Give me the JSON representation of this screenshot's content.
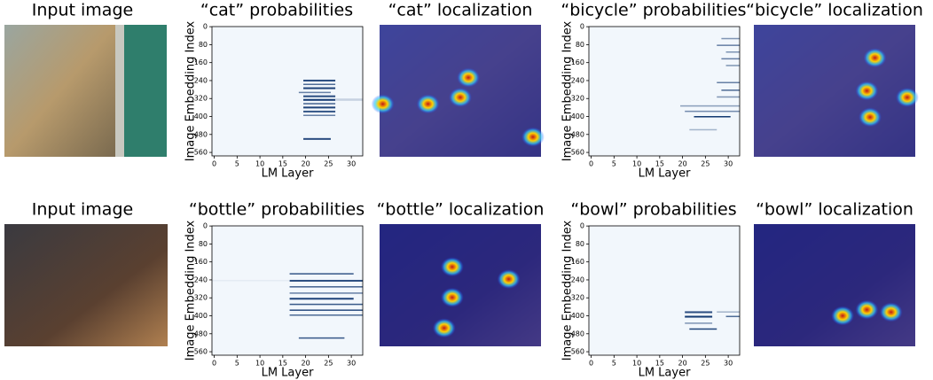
{
  "axes": {
    "xlabel": "LM Layer",
    "ylabel": "Image Embedding Index",
    "xlim": [
      -0.5,
      32.5
    ],
    "ylim": [
      -0.5,
      575.5
    ],
    "xticks": [
      0,
      5,
      10,
      15,
      20,
      25,
      30
    ],
    "yticks": [
      0,
      80,
      160,
      240,
      320,
      400,
      480,
      560
    ]
  },
  "rows": [
    {
      "input_title": "Input image",
      "localization_titles": [
        "“cat” localization",
        "“bicycle” localization"
      ],
      "plots": [
        {
          "title": "“cat” probabilities",
          "bands": [
            {
              "layers": [
                20,
                26
              ],
              "index": [
                236,
                244
              ],
              "level": 0.85
            },
            {
              "layers": [
                20,
                26
              ],
              "index": [
                254,
                260
              ],
              "level": 0.7
            },
            {
              "layers": [
                20,
                26
              ],
              "index": [
                270,
                278
              ],
              "level": 0.9
            },
            {
              "layers": [
                19,
                25
              ],
              "index": [
                290,
                296
              ],
              "level": 0.6
            },
            {
              "layers": [
                20,
                26
              ],
              "index": [
                306,
                314
              ],
              "level": 0.85
            },
            {
              "layers": [
                20,
                26
              ],
              "index": [
                322,
                330
              ],
              "level": 0.95
            },
            {
              "layers": [
                20,
                26
              ],
              "index": [
                340,
                346
              ],
              "level": 0.75
            },
            {
              "layers": [
                20,
                26
              ],
              "index": [
                356,
                364
              ],
              "level": 0.9
            },
            {
              "layers": [
                20,
                26
              ],
              "index": [
                374,
                382
              ],
              "level": 0.8
            },
            {
              "layers": [
                20,
                26
              ],
              "index": [
                392,
                398
              ],
              "level": 0.6
            },
            {
              "layers": [
                27,
                32
              ],
              "index": [
                320,
                330
              ],
              "level": 0.2
            },
            {
              "layers": [
                20,
                25
              ],
              "index": [
                496,
                504
              ],
              "level": 0.85
            }
          ]
        },
        {
          "title": "“bicycle” probabilities",
          "bands": [
            {
              "layers": [
                29,
                32
              ],
              "index": [
                50,
                56
              ],
              "level": 0.5
            },
            {
              "layers": [
                28,
                32
              ],
              "index": [
                80,
                86
              ],
              "level": 0.6
            },
            {
              "layers": [
                30,
                32
              ],
              "index": [
                110,
                116
              ],
              "level": 0.5
            },
            {
              "layers": [
                29,
                32
              ],
              "index": [
                140,
                146
              ],
              "level": 0.6
            },
            {
              "layers": [
                30,
                32
              ],
              "index": [
                170,
                176
              ],
              "level": 0.5
            },
            {
              "layers": [
                28,
                32
              ],
              "index": [
                246,
                252
              ],
              "level": 0.6
            },
            {
              "layers": [
                29,
                32
              ],
              "index": [
                280,
                286
              ],
              "level": 0.7
            },
            {
              "layers": [
                28,
                32
              ],
              "index": [
                310,
                316
              ],
              "level": 0.5
            },
            {
              "layers": [
                20,
                32
              ],
              "index": [
                350,
                356
              ],
              "level": 0.45
            },
            {
              "layers": [
                21,
                32
              ],
              "index": [
                374,
                380
              ],
              "level": 0.55
            },
            {
              "layers": [
                23,
                30
              ],
              "index": [
                398,
                404
              ],
              "level": 0.95
            },
            {
              "layers": [
                22,
                27
              ],
              "index": [
                456,
                462
              ],
              "level": 0.35
            }
          ]
        }
      ]
    },
    {
      "input_title": "Input image",
      "localization_titles": [
        "“bottle” localization",
        "“bowl” localization"
      ],
      "plots": [
        {
          "title": "“bottle” probabilities",
          "bands": [
            {
              "layers": [
                17,
                30
              ],
              "index": [
                210,
                216
              ],
              "level": 0.8
            },
            {
              "layers": [
                17,
                32
              ],
              "index": [
                240,
                248
              ],
              "level": 0.85
            },
            {
              "layers": [
                17,
                32
              ],
              "index": [
                268,
                274
              ],
              "level": 0.75
            },
            {
              "layers": [
                17,
                32
              ],
              "index": [
                296,
                302
              ],
              "level": 0.6
            },
            {
              "layers": [
                17,
                30
              ],
              "index": [
                320,
                328
              ],
              "level": 0.9
            },
            {
              "layers": [
                17,
                32
              ],
              "index": [
                346,
                352
              ],
              "level": 0.8
            },
            {
              "layers": [
                17,
                32
              ],
              "index": [
                372,
                378
              ],
              "level": 0.85
            },
            {
              "layers": [
                17,
                32
              ],
              "index": [
                394,
                400
              ],
              "level": 0.7
            },
            {
              "layers": [
                0,
                16
              ],
              "index": [
                240,
                246
              ],
              "level": 0.08
            },
            {
              "layers": [
                19,
                28
              ],
              "index": [
                496,
                502
              ],
              "level": 0.8
            }
          ]
        },
        {
          "title": "“bowl” probabilities",
          "bands": [
            {
              "layers": [
                21,
                26
              ],
              "index": [
                380,
                388
              ],
              "level": 0.85
            },
            {
              "layers": [
                28,
                32
              ],
              "index": [
                380,
                386
              ],
              "level": 0.35
            },
            {
              "layers": [
                21,
                26
              ],
              "index": [
                400,
                408
              ],
              "level": 0.95
            },
            {
              "layers": [
                30,
                32
              ],
              "index": [
                400,
                406
              ],
              "level": 0.7
            },
            {
              "layers": [
                21,
                26
              ],
              "index": [
                430,
                436
              ],
              "level": 0.5
            },
            {
              "layers": [
                22,
                27
              ],
              "index": [
                456,
                462
              ],
              "level": 0.9
            }
          ]
        }
      ]
    }
  ]
}
